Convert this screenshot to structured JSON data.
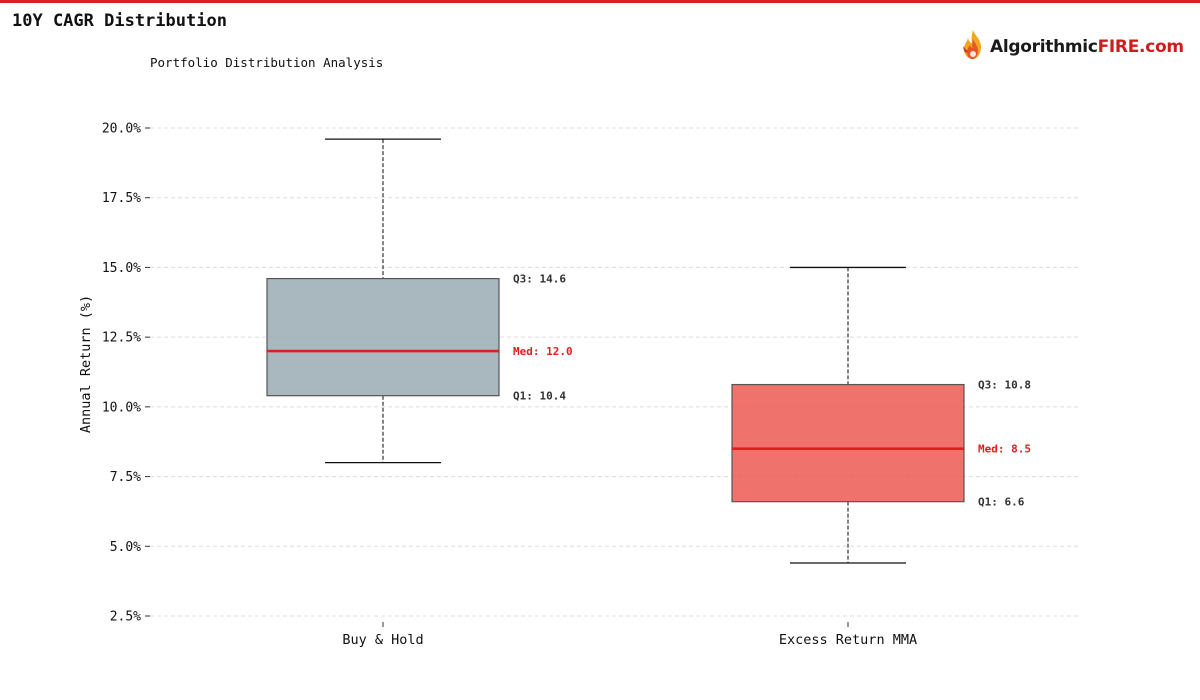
{
  "header": {
    "title": "10Y CAGR Distribution",
    "subtitle": "Portfolio Distribution Analysis"
  },
  "brand": {
    "name_part1": "Algorithmic",
    "name_part2": "FIRE.com",
    "icon": "flame-logo-icon",
    "accent_color": "#d01c1c"
  },
  "chart_data": {
    "type": "box",
    "ylabel": "Annual Return (%)",
    "xlabel": "",
    "ylim": [
      2.5,
      20.0
    ],
    "yticks": [
      2.5,
      5.0,
      7.5,
      10.0,
      12.5,
      15.0,
      17.5,
      20.0
    ],
    "ytick_labels": [
      "2.5%",
      "5.0%",
      "7.5%",
      "10.0%",
      "12.5%",
      "15.0%",
      "17.5%",
      "20.0%"
    ],
    "grid": true,
    "categories": [
      "Buy & Hold",
      "Excess Return MMA"
    ],
    "boxes": [
      {
        "name": "Buy & Hold",
        "whisker_low": 8.0,
        "q1": 10.4,
        "median": 12.0,
        "q3": 14.6,
        "whisker_high": 19.6,
        "color": "#9aabb3",
        "label_q3": "Q3: 14.6",
        "label_med": "Med: 12.0",
        "label_q1": "Q1: 10.4"
      },
      {
        "name": "Excess Return MMA",
        "whisker_low": 4.4,
        "q1": 6.6,
        "median": 8.5,
        "q3": 10.8,
        "whisker_high": 15.0,
        "color": "#ec5a52",
        "label_q3": "Q3: 10.8",
        "label_med": "Med: 8.5",
        "label_q1": "Q1: 6.6"
      }
    ],
    "median_color": "#e01e1e"
  }
}
